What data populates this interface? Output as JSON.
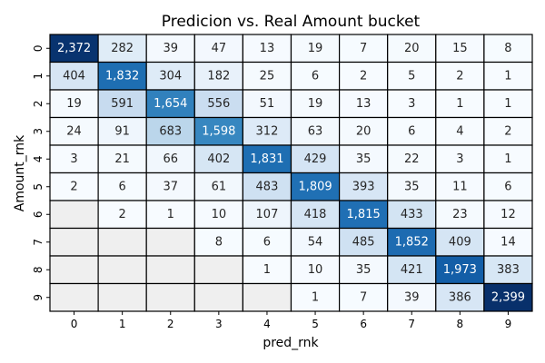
{
  "chart_data": {
    "type": "heatmap",
    "title": "Predicion vs. Real Amount bucket",
    "xlabel": "pred_rnk",
    "ylabel": "Amount_rnk",
    "x_categories": [
      "0",
      "1",
      "2",
      "3",
      "4",
      "5",
      "6",
      "7",
      "8",
      "9"
    ],
    "y_categories": [
      "0",
      "1",
      "2",
      "3",
      "4",
      "5",
      "6",
      "7",
      "8",
      "9"
    ],
    "values": [
      [
        2372,
        282,
        39,
        47,
        13,
        19,
        7,
        20,
        15,
        8
      ],
      [
        404,
        1832,
        304,
        182,
        25,
        6,
        2,
        5,
        2,
        1
      ],
      [
        19,
        591,
        1654,
        556,
        51,
        19,
        13,
        3,
        1,
        1
      ],
      [
        24,
        91,
        683,
        1598,
        312,
        63,
        20,
        6,
        4,
        2
      ],
      [
        3,
        21,
        66,
        402,
        1831,
        429,
        35,
        22,
        3,
        1
      ],
      [
        2,
        6,
        37,
        61,
        483,
        1809,
        393,
        35,
        11,
        6
      ],
      [
        null,
        2,
        1,
        10,
        107,
        418,
        1815,
        433,
        23,
        12
      ],
      [
        null,
        null,
        null,
        8,
        6,
        54,
        485,
        1852,
        409,
        14
      ],
      [
        null,
        null,
        null,
        null,
        1,
        10,
        35,
        421,
        1973,
        383
      ],
      [
        null,
        null,
        null,
        null,
        null,
        1,
        7,
        39,
        386,
        2399
      ]
    ],
    "value_range": [
      0,
      2399
    ],
    "colormap": "Blues",
    "missing_color": "#efefef",
    "cell_border_color": "#000000",
    "colorbar": false,
    "number_format": "thousands-comma"
  }
}
